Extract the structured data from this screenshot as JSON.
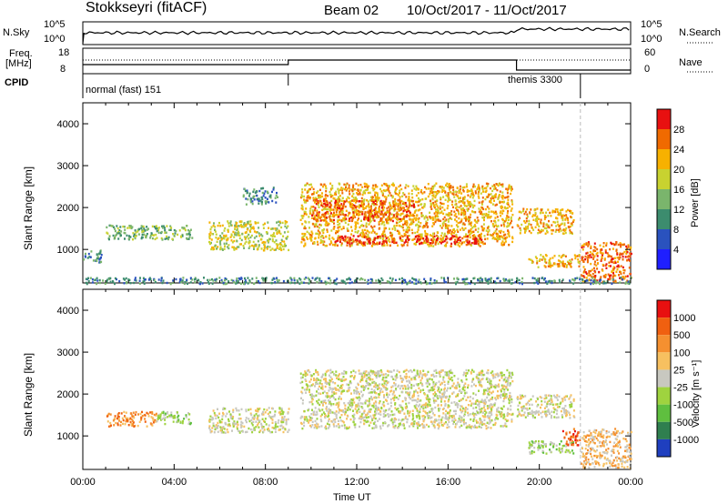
{
  "header": {
    "radar": "Stokkseyri (fitACF)",
    "beam": "Beam 02",
    "dates": "10/Oct/2017 - 11/Oct/2017"
  },
  "noise_panel": {
    "left_label": "N.Sky",
    "right_label": "N.Search",
    "tick_top": "10^5",
    "tick_bottom": "10^0"
  },
  "freq_panel": {
    "left_label_1": "Freq.",
    "left_label_2": "[MHz]",
    "left_tick_top": "18",
    "left_tick_bottom": "8",
    "right_label": "Nave",
    "right_tick_top": "60",
    "right_tick_bottom": "0"
  },
  "cpid_panel": {
    "label": "CPID",
    "mode_1": "normal (fast) 151",
    "mode_2": "themis 3300"
  },
  "x_axis": {
    "label": "Time UT",
    "ticks": [
      "00:00",
      "04:00",
      "08:00",
      "12:00",
      "16:00",
      "20:00",
      "00:00"
    ]
  },
  "chart_data": [
    {
      "type": "heatmap",
      "name": "power",
      "ylabel": "Slant Range [km]",
      "yticks": [
        "1000",
        "2000",
        "3000",
        "4000"
      ],
      "ylim": [
        200,
        4500
      ],
      "xlim": [
        0,
        24
      ],
      "colorbar": {
        "label": "Power [dB]",
        "ticks": [
          "4",
          "8",
          "12",
          "16",
          "20",
          "24",
          "28"
        ],
        "colors": [
          "#1f1fff",
          "#2a52be",
          "#3c8c6e",
          "#7ab56c",
          "#c8d230",
          "#f7b100",
          "#f06a00",
          "#e81010"
        ]
      },
      "regions": [
        {
          "t0": 1.0,
          "t1": 4.8,
          "r0": 1250,
          "r1": 1600,
          "level": 3
        },
        {
          "t0": 0.0,
          "t1": 0.8,
          "r0": 700,
          "r1": 1000,
          "level": 2
        },
        {
          "t0": 5.5,
          "t1": 9.0,
          "r0": 1000,
          "r1": 1700,
          "level": 4
        },
        {
          "t0": 7.0,
          "t1": 8.5,
          "r0": 2100,
          "r1": 2500,
          "level": 2
        },
        {
          "t0": 9.5,
          "t1": 18.8,
          "r0": 1100,
          "r1": 2600,
          "level": 5
        },
        {
          "t0": 11.0,
          "t1": 17.5,
          "r0": 1150,
          "r1": 1350,
          "level": 7
        },
        {
          "t0": 10.0,
          "t1": 14.5,
          "r0": 1700,
          "r1": 2200,
          "level": 6
        },
        {
          "t0": 19.0,
          "t1": 21.5,
          "r0": 1400,
          "r1": 2000,
          "level": 5
        },
        {
          "t0": 19.5,
          "t1": 21.8,
          "r0": 600,
          "r1": 900,
          "level": 5
        },
        {
          "t0": 21.8,
          "t1": 24.0,
          "r0": 250,
          "r1": 1200,
          "level": 6
        },
        {
          "t0": 0.0,
          "t1": 24.0,
          "r0": 200,
          "r1": 350,
          "level": 2
        }
      ]
    },
    {
      "type": "heatmap",
      "name": "velocity",
      "ylabel": "Slant Range [km]",
      "yticks": [
        "1000",
        "2000",
        "3000",
        "4000"
      ],
      "ylim": [
        200,
        4500
      ],
      "xlim": [
        0,
        24
      ],
      "colorbar": {
        "label": "Velocity [m s⁻¹]",
        "ticks": [
          "1000",
          "500",
          "100",
          "25",
          "-25",
          "-100",
          "-500",
          "-1000"
        ],
        "colors": [
          "#1f3fbf",
          "#2f7f4f",
          "#5fbf3f",
          "#9fd33f",
          "#c8c8c0",
          "#f7c060",
          "#f59030",
          "#f06010",
          "#e81010"
        ]
      },
      "regions": [
        {
          "t0": 1.0,
          "t1": 3.2,
          "r0": 1250,
          "r1": 1600,
          "level": 6
        },
        {
          "t0": 3.2,
          "t1": 4.8,
          "r0": 1300,
          "r1": 1600,
          "level": 3
        },
        {
          "t0": 9.5,
          "t1": 18.8,
          "r0": 1200,
          "r1": 2600,
          "level": 4
        },
        {
          "t0": 5.5,
          "t1": 9.0,
          "r0": 1100,
          "r1": 1700,
          "level": 4
        },
        {
          "t0": 19.0,
          "t1": 21.5,
          "r0": 1450,
          "r1": 2000,
          "level": 4
        },
        {
          "t0": 19.5,
          "t1": 21.5,
          "r0": 600,
          "r1": 900,
          "level": 3
        },
        {
          "t0": 21.0,
          "t1": 21.8,
          "r0": 800,
          "r1": 1200,
          "level": 7
        },
        {
          "t0": 21.8,
          "t1": 24.0,
          "r0": 250,
          "r1": 1200,
          "level": 5
        }
      ]
    }
  ]
}
